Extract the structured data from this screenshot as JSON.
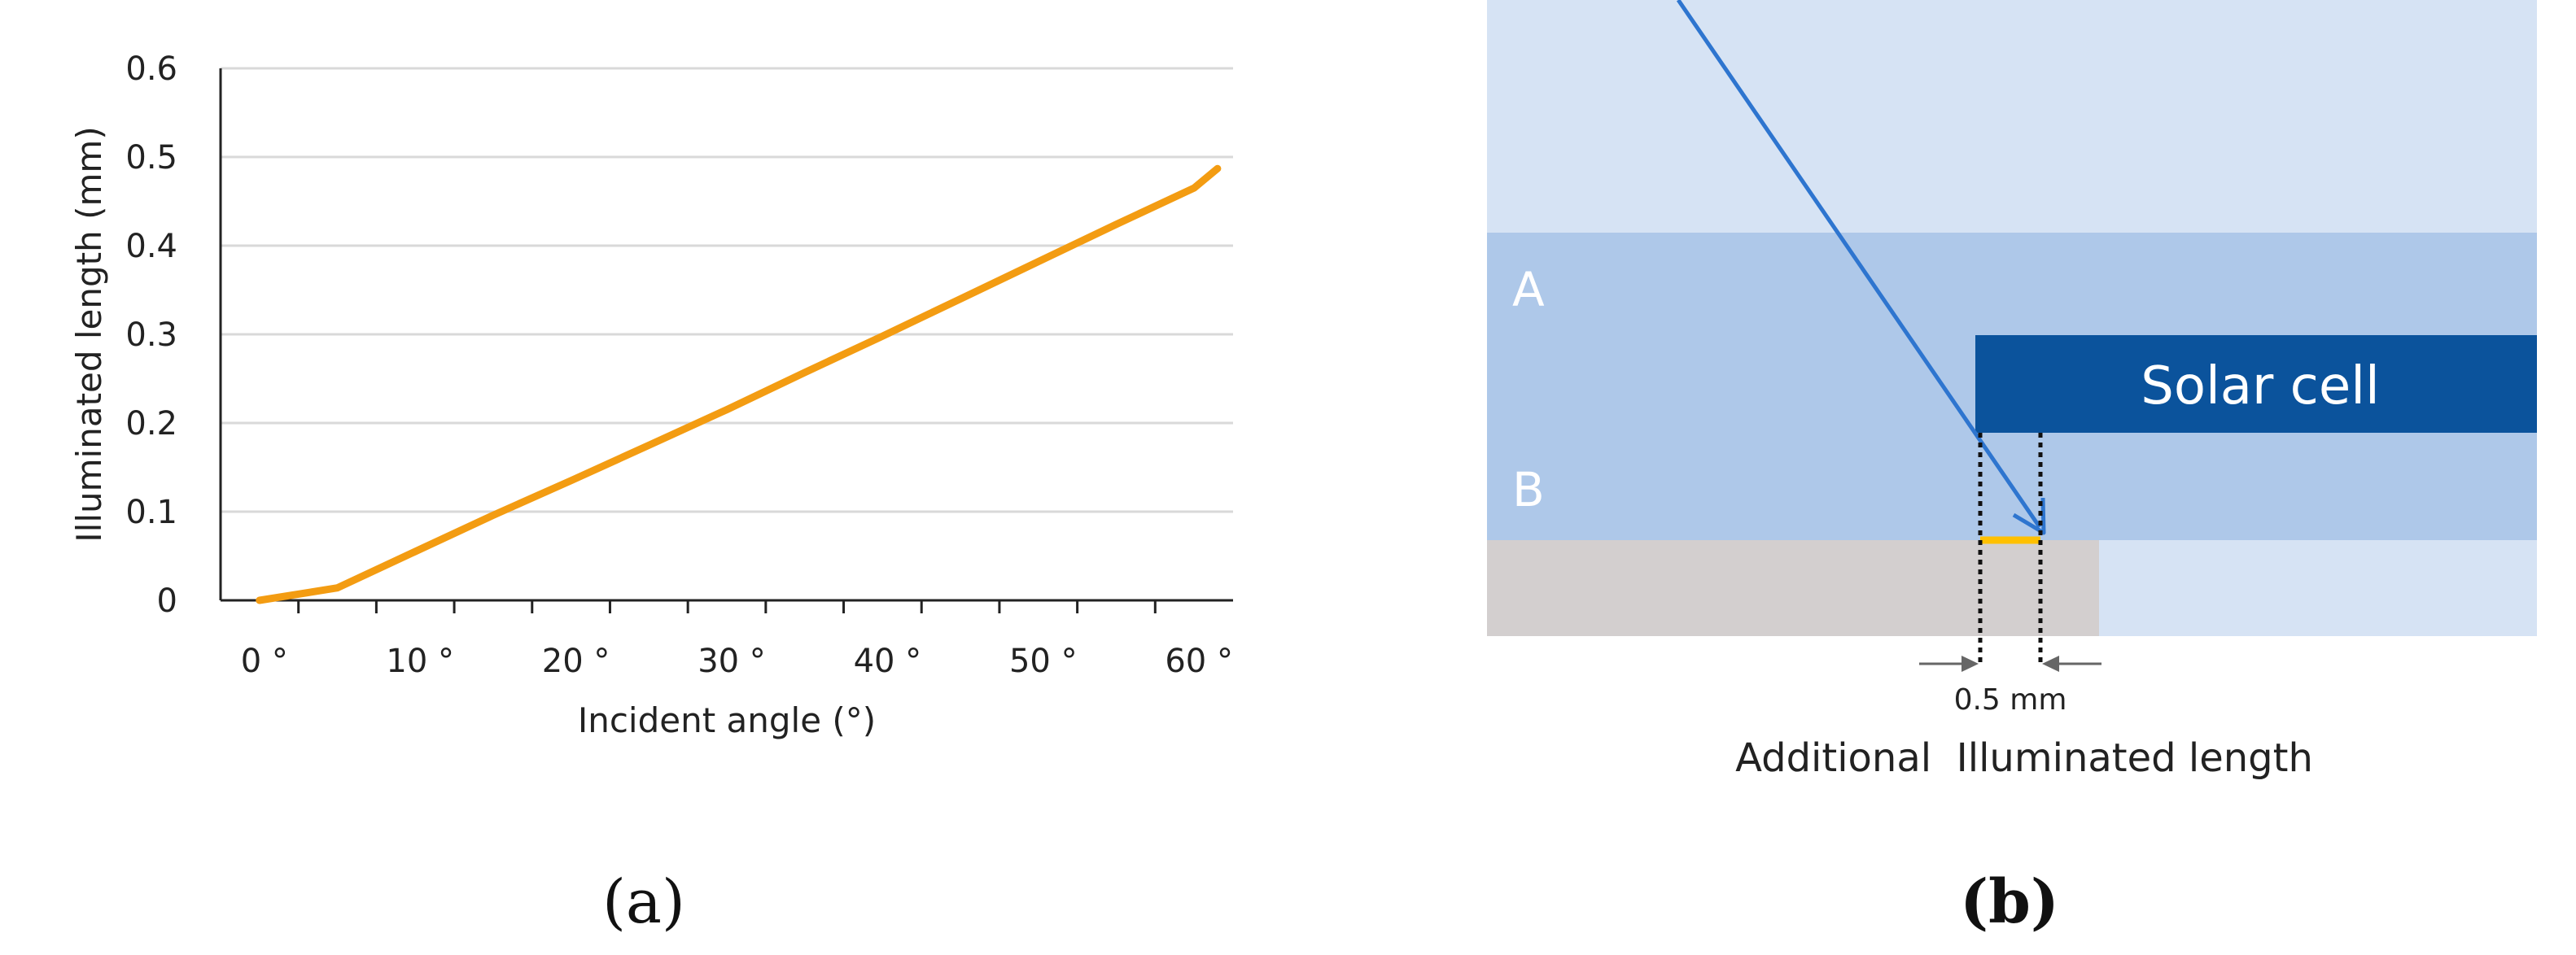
{
  "chart_data": {
    "type": "line",
    "xlabel": "Incident angle (°)",
    "ylabel": "Illuminated length (mm)",
    "xlim": [
      -2.5,
      62.5
    ],
    "ylim": [
      0,
      0.6
    ],
    "x_ticks": [
      0,
      10,
      20,
      30,
      40,
      50,
      60
    ],
    "x_tick_labels": [
      "0 °",
      "10 °",
      "20 °",
      "30 °",
      "40 °",
      "50 °",
      "60 °"
    ],
    "y_ticks": [
      0,
      0.1,
      0.2,
      0.3,
      0.4,
      0.5,
      0.6
    ],
    "y_tick_labels": [
      "0",
      "0.1",
      "0.2",
      "0.3",
      "0.4",
      "0.5",
      "0.6"
    ],
    "grid": "horizontal",
    "series": [
      {
        "color": "#F39C12",
        "x": [
          0,
          5,
          10,
          15,
          20,
          25,
          30,
          35,
          40,
          45,
          50,
          55,
          60,
          61.5
        ],
        "y": [
          0,
          0.014,
          0.055,
          0.096,
          0.135,
          0.175,
          0.215,
          0.257,
          0.298,
          0.34,
          0.382,
          0.424,
          0.465,
          0.487
        ]
      }
    ]
  },
  "panel_labels": {
    "a": "(a)",
    "b": "(b)"
  },
  "diagram": {
    "layer_a_label": "A",
    "layer_b_label": "B",
    "solar_cell_label": "Solar cell",
    "dimension_label": "0.5 mm",
    "caption": "Additional  Illuminated length",
    "colors": {
      "top_layer": "#D6E3F4",
      "middle_layer": "#AEC8E9",
      "solar_cell": "#0B539C",
      "substrate": "#D3CFCF",
      "ray": "#2E75CF",
      "highlight": "#FFC000"
    }
  }
}
